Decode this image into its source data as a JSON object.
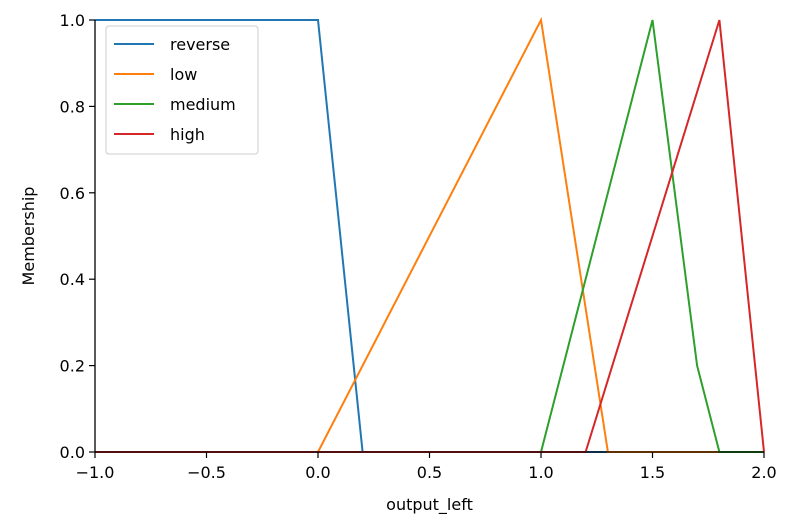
{
  "chart_data": {
    "type": "line",
    "title": "",
    "xlabel": "output_left",
    "ylabel": "Membership",
    "xlim": [
      -1.0,
      2.0
    ],
    "ylim": [
      0.0,
      1.0
    ],
    "x_ticks": [
      -1.0,
      -0.5,
      0.0,
      0.5,
      1.0,
      1.5,
      2.0
    ],
    "x_tick_labels": [
      "−1.0",
      "−0.5",
      "0.0",
      "0.5",
      "1.0",
      "1.5",
      "2.0"
    ],
    "y_ticks": [
      0.0,
      0.2,
      0.4,
      0.6,
      0.8,
      1.0
    ],
    "y_tick_labels": [
      "0.0",
      "0.2",
      "0.4",
      "0.6",
      "0.8",
      "1.0"
    ],
    "grid": false,
    "legend_position": "top-left",
    "series": [
      {
        "name": "reverse",
        "color": "#1f77b4",
        "x": [
          -1.0,
          0.0,
          0.2,
          2.0
        ],
        "y": [
          1.0,
          1.0,
          0.0,
          0.0
        ]
      },
      {
        "name": "low",
        "color": "#ff7f0e",
        "x": [
          -1.0,
          0.0,
          1.0,
          1.3,
          2.0
        ],
        "y": [
          0.0,
          0.0,
          1.0,
          0.0,
          0.0
        ]
      },
      {
        "name": "medium",
        "color": "#2ca02c",
        "x": [
          -1.0,
          1.0,
          1.5,
          1.7,
          1.8,
          2.0
        ],
        "y": [
          0.0,
          0.0,
          1.0,
          0.2,
          0.0,
          0.0
        ]
      },
      {
        "name": "high",
        "color": "#d62728",
        "x": [
          -1.0,
          1.2,
          1.8,
          2.0
        ],
        "y": [
          0.0,
          0.0,
          1.0,
          0.0
        ]
      }
    ]
  }
}
